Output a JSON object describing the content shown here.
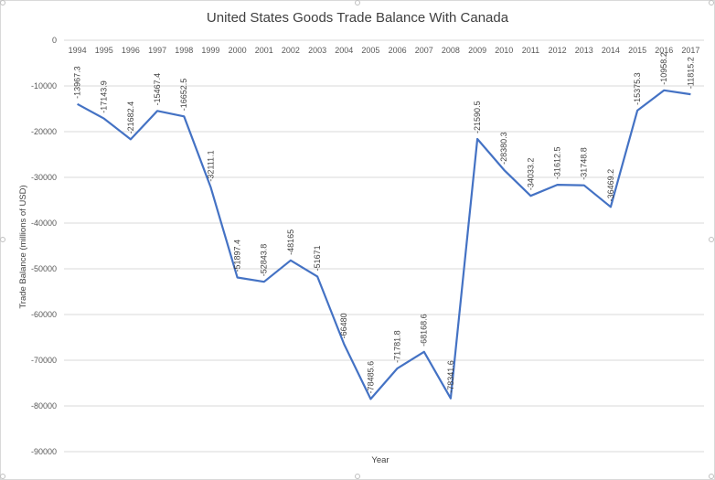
{
  "chart_data": {
    "type": "line",
    "title": "United States Goods Trade Balance With Canada",
    "xlabel": "Year",
    "ylabel": "Trade Balance (millions of USD)",
    "ylim": [
      -90000,
      0
    ],
    "yticks": [
      0,
      -10000,
      -20000,
      -30000,
      -40000,
      -50000,
      -60000,
      -70000,
      -80000,
      -90000
    ],
    "grid": "horizontal",
    "categories": [
      "1994",
      "1995",
      "1996",
      "1997",
      "1998",
      "1999",
      "2000",
      "2001",
      "2002",
      "2003",
      "2004",
      "2005",
      "2006",
      "2007",
      "2008",
      "2009",
      "2010",
      "2011",
      "2012",
      "2013",
      "2014",
      "2015",
      "2016",
      "2017"
    ],
    "values": [
      -13967.3,
      -17143.9,
      -21682.4,
      -15467.4,
      -16652.5,
      -32111.1,
      -51897.4,
      -52843.8,
      -48165,
      -51671,
      -66480,
      -78485.6,
      -71781.8,
      -68168.6,
      -78341.6,
      -21590.5,
      -28380.3,
      -34033.2,
      -31612.5,
      -31748.8,
      -36469.2,
      -15375.3,
      -10958.2,
      -11815.2
    ],
    "data_labels": [
      "-13967.3",
      "-17143.9",
      "-21682.4",
      "-15467.4",
      "-16652.5",
      "-32111.1",
      "-51897.4",
      "-52843.8",
      "-48165",
      "-51671",
      "-66480",
      "-78485.6",
      "-71781.8",
      "-68168.6",
      "-78341.6",
      "-21590.5",
      "-28380.3",
      "-34033.2",
      "-31612.5",
      "-31748.8",
      "-36469.2",
      "-15375.3",
      "-10958.2",
      "-11815.2"
    ],
    "series_color": "#4472c4"
  }
}
